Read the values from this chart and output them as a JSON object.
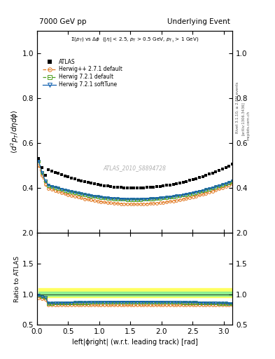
{
  "title_left": "7000 GeV pp",
  "title_right": "Underlying Event",
  "watermark": "ATLAS_2010_S8894728",
  "rivet_label": "Rivet 3.1.10, ≥ 2.8M events",
  "arxiv_label": "[arXiv:1306.3436]",
  "mcplots_label": "mcplots.cern.ch",
  "xlabel": "left|ϕright| (w.r.t. leading track) [rad]",
  "ylabel_main": "$\\langle d^2 p_T/d\\eta d\\phi \\rangle$",
  "ylabel_ratio": "Ratio to ATLAS",
  "xlim": [
    0,
    3.14159
  ],
  "ylim_main": [
    0.2,
    1.1
  ],
  "ylim_ratio": [
    0.5,
    2.0
  ],
  "yticks_main": [
    0.4,
    0.6,
    0.8,
    1.0
  ],
  "yticks_ratio": [
    0.5,
    1.0,
    1.5,
    2.0
  ],
  "background_color": "#ffffff",
  "atlas_color": "#000000",
  "herwig_pp_color": "#e07820",
  "herwig721_color": "#50a020",
  "herwig721_soft_color": "#1060b0",
  "band_yellow_color": "#ffff60",
  "band_green_color": "#90ee90",
  "n_points": 60
}
